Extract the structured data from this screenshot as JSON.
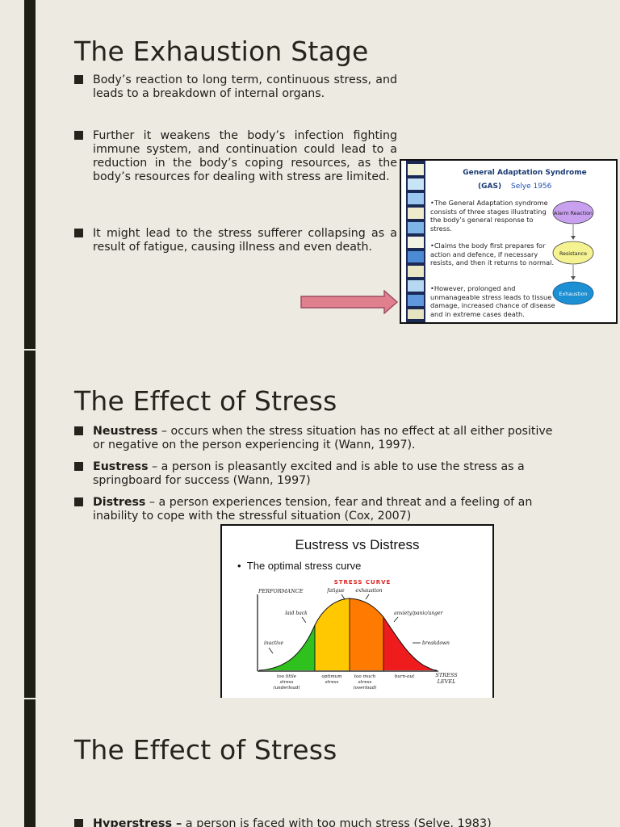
{
  "slide1": {
    "title": "The Exhaustion Stage",
    "bullets": [
      "Body’s reaction to long term, continuous stress, and leads to a breakdown of internal organs.",
      "Further it weakens the body’s infection fighting immune system, and continuation could lead to a reduction in the body’s coping resources, as the body’s resources for dealing with stress are limited.",
      "It might lead to the stress sufferer collapsing as a result of fatigue, causing illness and even death."
    ],
    "gas_card": {
      "heading": "General Adaptation Syndrome",
      "sub_left": "(GAS)",
      "sub_right": "Selye 1956",
      "points": [
        "•The General Adaptation syndrome consists of three stages illustrating the body’s general response to stress.",
        "•Claims the body first prepares for action and defence, if necessary resists, and then it returns to normal.",
        "•However, prolonged and unmanageable stress leads to tissue damage, increased chance of disease and in extreme cases death."
      ],
      "stages": [
        "Alarm Reaction",
        "Resistance",
        "Exhaustion"
      ],
      "stage_colors": [
        "#c9a0f0",
        "#f5f291",
        "#1d8fd3"
      ]
    },
    "arrow_color": "#e0808e"
  },
  "slide2": {
    "title": "The Effect of Stress",
    "bullets": [
      {
        "term": "Neustress",
        "rest": " – occurs when the stress situation has no effect at all either positive or negative on the person experiencing it (Wann, 1997)."
      },
      {
        "term": "Eustress",
        "rest": " – a person is pleasantly excited and is able to use the stress as a springboard for success (Wann, 1997)"
      },
      {
        "term": "Distress",
        "rest": " – a person experiences tension, fear and threat and a feeling of an inability to cope with the stressful situation (Cox, 2007)"
      }
    ],
    "chart_card": {
      "title": "Eustress vs Distress",
      "bullet": "The optimal stress curve",
      "curve_title": "STRESS CURVE",
      "y_label": "PERFORMANCE",
      "x_label_1": "STRESS",
      "x_label_2": "LEVEL",
      "top_labels": [
        "fatigue",
        "exhaustion"
      ],
      "side_labels": [
        "laid back",
        "anxiety/panic/anger",
        "inactive",
        "breakdown"
      ],
      "bottom_labels": [
        [
          "too little",
          "stress",
          "(underload)"
        ],
        [
          "optimum",
          "stress"
        ],
        [
          "too much",
          "stress",
          "(overload)"
        ],
        [
          "burn-out"
        ]
      ],
      "zone_colors": [
        "#2fc11d",
        "#ffc800",
        "#ff7a00",
        "#ee1c1c"
      ]
    }
  },
  "slide3": {
    "title": "The Effect of Stress",
    "bullets": [
      {
        "term": "Hyperstress –",
        "rest": " a person is faced with too much stress (Selye, 1983)"
      }
    ]
  }
}
